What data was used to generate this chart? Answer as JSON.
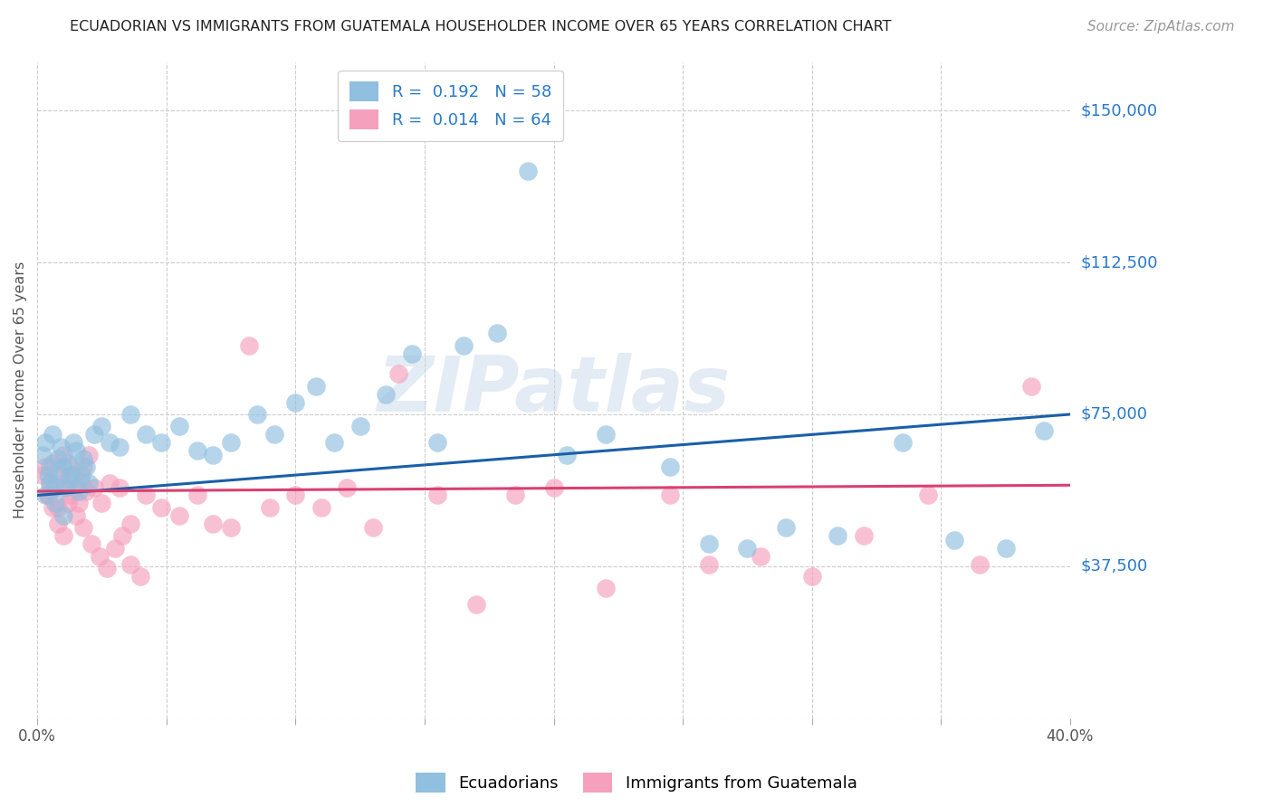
{
  "title": "ECUADORIAN VS IMMIGRANTS FROM GUATEMALA HOUSEHOLDER INCOME OVER 65 YEARS CORRELATION CHART",
  "source": "Source: ZipAtlas.com",
  "ylabel": "Householder Income Over 65 years",
  "yticks": [
    0,
    37500,
    75000,
    112500,
    150000
  ],
  "ytick_labels": [
    "",
    "$37,500",
    "$75,000",
    "$112,500",
    "$150,000"
  ],
  "xmin": 0.0,
  "xmax": 0.4,
  "ymin": 0,
  "ymax": 162000,
  "ecuadorians_label": "Ecuadorians",
  "guatemala_label": "Immigrants from Guatemala",
  "blue_color": "#90bfdf",
  "pink_color": "#f5a0bc",
  "blue_line_color": "#1a5fa8",
  "pink_line_color": "#d94070",
  "watermark": "ZIPatlas",
  "blue_R": 0.192,
  "blue_N": 58,
  "pink_R": 0.014,
  "pink_N": 64,
  "grid_color": "#cccccc",
  "title_color": "#222222",
  "source_color": "#999999",
  "axis_color": "#555555",
  "ytick_color": "#2979c8",
  "legend_label_color": "#2979c8",
  "blue_x": [
    0.002,
    0.003,
    0.004,
    0.005,
    0.006,
    0.007,
    0.008,
    0.009,
    0.01,
    0.011,
    0.012,
    0.013,
    0.014,
    0.015,
    0.017,
    0.018,
    0.019,
    0.02,
    0.022,
    0.025,
    0.028,
    0.032,
    0.036,
    0.042,
    0.048,
    0.055,
    0.062,
    0.068,
    0.075,
    0.085,
    0.092,
    0.1,
    0.108,
    0.115,
    0.125,
    0.135,
    0.145,
    0.155,
    0.165,
    0.178,
    0.19,
    0.205,
    0.22,
    0.245,
    0.26,
    0.275,
    0.29,
    0.31,
    0.335,
    0.355,
    0.375,
    0.39,
    0.003,
    0.005,
    0.007,
    0.01,
    0.013,
    0.016
  ],
  "blue_y": [
    65000,
    68000,
    60000,
    62000,
    70000,
    58000,
    64000,
    67000,
    62000,
    57000,
    63000,
    59000,
    68000,
    66000,
    60000,
    64000,
    62000,
    58000,
    70000,
    72000,
    68000,
    67000,
    75000,
    70000,
    68000,
    72000,
    66000,
    65000,
    68000,
    75000,
    70000,
    78000,
    82000,
    68000,
    72000,
    80000,
    90000,
    68000,
    92000,
    95000,
    135000,
    65000,
    70000,
    62000,
    43000,
    42000,
    47000,
    45000,
    68000,
    44000,
    42000,
    71000,
    55000,
    58000,
    53000,
    50000,
    60000,
    56000
  ],
  "pink_x": [
    0.002,
    0.003,
    0.004,
    0.005,
    0.006,
    0.007,
    0.008,
    0.009,
    0.01,
    0.011,
    0.012,
    0.013,
    0.014,
    0.015,
    0.016,
    0.017,
    0.018,
    0.019,
    0.02,
    0.022,
    0.025,
    0.028,
    0.032,
    0.036,
    0.042,
    0.048,
    0.055,
    0.062,
    0.068,
    0.075,
    0.082,
    0.09,
    0.1,
    0.11,
    0.12,
    0.13,
    0.14,
    0.155,
    0.17,
    0.185,
    0.2,
    0.22,
    0.245,
    0.26,
    0.28,
    0.3,
    0.32,
    0.345,
    0.365,
    0.385,
    0.004,
    0.006,
    0.008,
    0.01,
    0.012,
    0.015,
    0.018,
    0.021,
    0.024,
    0.027,
    0.03,
    0.033,
    0.036,
    0.04
  ],
  "pink_y": [
    60000,
    62000,
    55000,
    58000,
    63000,
    57000,
    52000,
    60000,
    65000,
    58000,
    62000,
    55000,
    60000,
    57000,
    53000,
    58000,
    62000,
    56000,
    65000,
    57000,
    53000,
    58000,
    57000,
    48000,
    55000,
    52000,
    50000,
    55000,
    48000,
    47000,
    92000,
    52000,
    55000,
    52000,
    57000,
    47000,
    85000,
    55000,
    28000,
    55000,
    57000,
    32000,
    55000,
    38000,
    40000,
    35000,
    45000,
    55000,
    38000,
    82000,
    55000,
    52000,
    48000,
    45000,
    53000,
    50000,
    47000,
    43000,
    40000,
    37000,
    42000,
    45000,
    38000,
    35000
  ]
}
